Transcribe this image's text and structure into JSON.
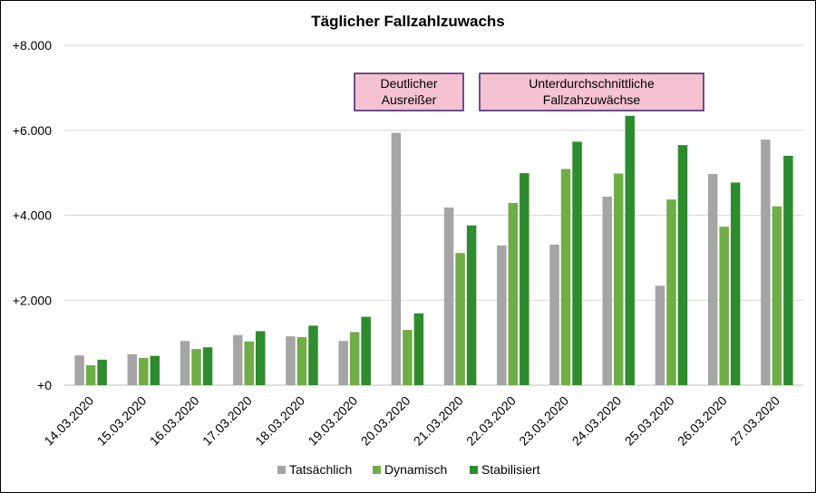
{
  "chart_data": {
    "type": "bar",
    "title": "Täglicher Fallzahlzuwachs",
    "xlabel": "",
    "ylabel": "",
    "ylim": [
      0,
      8000
    ],
    "yticks": [
      0,
      2000,
      4000,
      6000,
      8000
    ],
    "ytick_labels": [
      "+0",
      "+2.000",
      "+4.000",
      "+6.000",
      "+8.000"
    ],
    "grid": true,
    "legend_position": "bottom",
    "categories": [
      "14.03.2020",
      "15.03.2020",
      "16.03.2020",
      "17.03.2020",
      "18.03.2020",
      "19.03.2020",
      "20.03.2020",
      "21.03.2020",
      "22.03.2020",
      "23.03.2020",
      "24.03.2020",
      "25.03.2020",
      "26.03.2020",
      "27.03.2020"
    ],
    "series": [
      {
        "name": "Tatsächlich",
        "color": "#a5a5a5",
        "values": [
          700,
          730,
          1040,
          1180,
          1150,
          1040,
          5940,
          4180,
          3290,
          3310,
          4440,
          2340,
          4970,
          5780
        ]
      },
      {
        "name": "Dynamisch",
        "color": "#70ad47",
        "values": [
          470,
          640,
          850,
          1030,
          1130,
          1250,
          1300,
          3110,
          4290,
          5090,
          4980,
          4370,
          3730,
          4210
        ]
      },
      {
        "name": "Stabilisiert",
        "color": "#2e8b2e",
        "values": [
          600,
          690,
          890,
          1270,
          1400,
          1610,
          1690,
          3760,
          4990,
          5730,
          6340,
          5650,
          4770,
          5400
        ]
      }
    ],
    "annotations": [
      {
        "text_lines": [
          "Deutlicher",
          "Ausreißer"
        ],
        "over_categories": [
          "20.03.2020"
        ]
      },
      {
        "text_lines": [
          "Unterdurchschnittliche",
          "Fallzahzuwächse"
        ],
        "over_categories": [
          "22.03.2020",
          "25.03.2020"
        ]
      }
    ]
  }
}
